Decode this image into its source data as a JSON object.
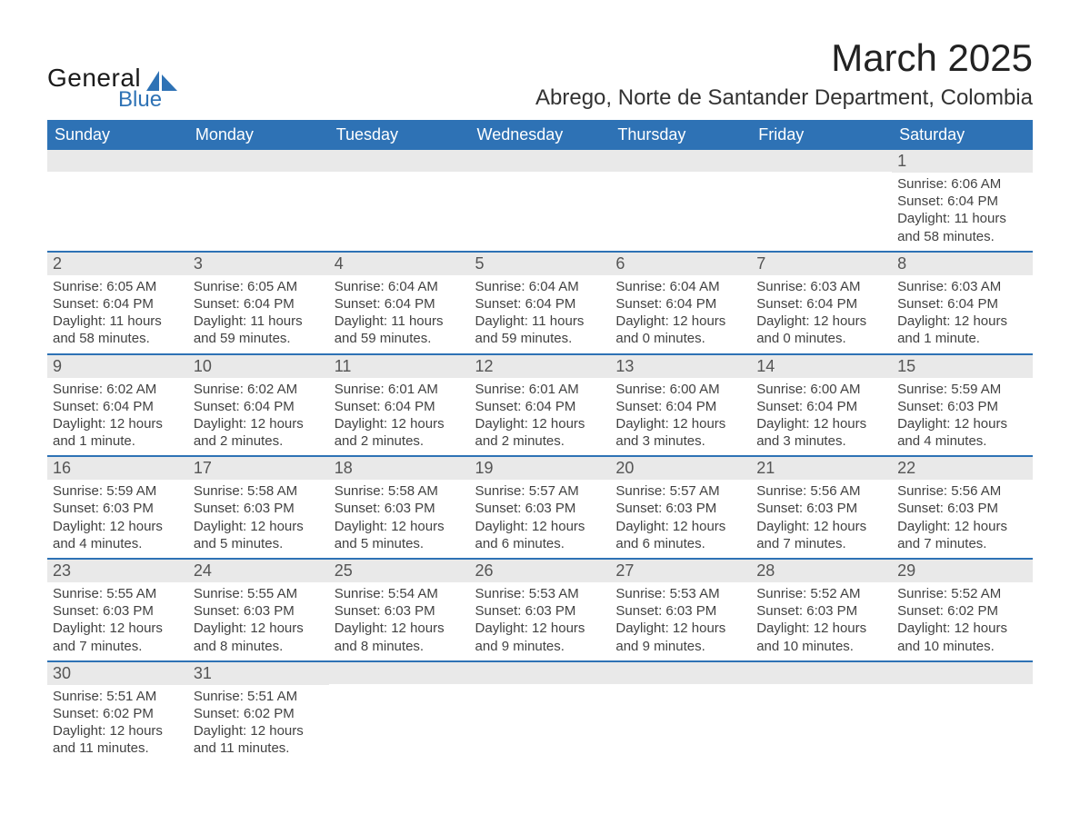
{
  "brand": {
    "name_part1": "General",
    "name_part2": "Blue",
    "shape_color": "#2e72b5",
    "text_general_color": "#1a1a1a",
    "text_blue_color": "#2e72b5"
  },
  "header": {
    "month_title": "March 2025",
    "location": "Abrego, Norte de Santander Department, Colombia"
  },
  "colors": {
    "header_row_bg": "#2e72b5",
    "header_row_text": "#ffffff",
    "daynum_bg": "#e9e9e9",
    "row_border": "#2e72b5",
    "body_text": "#424242",
    "page_bg": "#ffffff"
  },
  "fonts": {
    "month_title_size_pt": 32,
    "location_size_pt": 18,
    "weekday_size_pt": 14,
    "daynum_size_pt": 14,
    "body_size_pt": 11
  },
  "calendar": {
    "type": "table",
    "weekdays": [
      "Sunday",
      "Monday",
      "Tuesday",
      "Wednesday",
      "Thursday",
      "Friday",
      "Saturday"
    ],
    "weeks": [
      [
        {
          "day": "",
          "sunrise": "",
          "sunset": "",
          "daylight": ""
        },
        {
          "day": "",
          "sunrise": "",
          "sunset": "",
          "daylight": ""
        },
        {
          "day": "",
          "sunrise": "",
          "sunset": "",
          "daylight": ""
        },
        {
          "day": "",
          "sunrise": "",
          "sunset": "",
          "daylight": ""
        },
        {
          "day": "",
          "sunrise": "",
          "sunset": "",
          "daylight": ""
        },
        {
          "day": "",
          "sunrise": "",
          "sunset": "",
          "daylight": ""
        },
        {
          "day": "1",
          "sunrise": "Sunrise: 6:06 AM",
          "sunset": "Sunset: 6:04 PM",
          "daylight": "Daylight: 11 hours and 58 minutes."
        }
      ],
      [
        {
          "day": "2",
          "sunrise": "Sunrise: 6:05 AM",
          "sunset": "Sunset: 6:04 PM",
          "daylight": "Daylight: 11 hours and 58 minutes."
        },
        {
          "day": "3",
          "sunrise": "Sunrise: 6:05 AM",
          "sunset": "Sunset: 6:04 PM",
          "daylight": "Daylight: 11 hours and 59 minutes."
        },
        {
          "day": "4",
          "sunrise": "Sunrise: 6:04 AM",
          "sunset": "Sunset: 6:04 PM",
          "daylight": "Daylight: 11 hours and 59 minutes."
        },
        {
          "day": "5",
          "sunrise": "Sunrise: 6:04 AM",
          "sunset": "Sunset: 6:04 PM",
          "daylight": "Daylight: 11 hours and 59 minutes."
        },
        {
          "day": "6",
          "sunrise": "Sunrise: 6:04 AM",
          "sunset": "Sunset: 6:04 PM",
          "daylight": "Daylight: 12 hours and 0 minutes."
        },
        {
          "day": "7",
          "sunrise": "Sunrise: 6:03 AM",
          "sunset": "Sunset: 6:04 PM",
          "daylight": "Daylight: 12 hours and 0 minutes."
        },
        {
          "day": "8",
          "sunrise": "Sunrise: 6:03 AM",
          "sunset": "Sunset: 6:04 PM",
          "daylight": "Daylight: 12 hours and 1 minute."
        }
      ],
      [
        {
          "day": "9",
          "sunrise": "Sunrise: 6:02 AM",
          "sunset": "Sunset: 6:04 PM",
          "daylight": "Daylight: 12 hours and 1 minute."
        },
        {
          "day": "10",
          "sunrise": "Sunrise: 6:02 AM",
          "sunset": "Sunset: 6:04 PM",
          "daylight": "Daylight: 12 hours and 2 minutes."
        },
        {
          "day": "11",
          "sunrise": "Sunrise: 6:01 AM",
          "sunset": "Sunset: 6:04 PM",
          "daylight": "Daylight: 12 hours and 2 minutes."
        },
        {
          "day": "12",
          "sunrise": "Sunrise: 6:01 AM",
          "sunset": "Sunset: 6:04 PM",
          "daylight": "Daylight: 12 hours and 2 minutes."
        },
        {
          "day": "13",
          "sunrise": "Sunrise: 6:00 AM",
          "sunset": "Sunset: 6:04 PM",
          "daylight": "Daylight: 12 hours and 3 minutes."
        },
        {
          "day": "14",
          "sunrise": "Sunrise: 6:00 AM",
          "sunset": "Sunset: 6:04 PM",
          "daylight": "Daylight: 12 hours and 3 minutes."
        },
        {
          "day": "15",
          "sunrise": "Sunrise: 5:59 AM",
          "sunset": "Sunset: 6:03 PM",
          "daylight": "Daylight: 12 hours and 4 minutes."
        }
      ],
      [
        {
          "day": "16",
          "sunrise": "Sunrise: 5:59 AM",
          "sunset": "Sunset: 6:03 PM",
          "daylight": "Daylight: 12 hours and 4 minutes."
        },
        {
          "day": "17",
          "sunrise": "Sunrise: 5:58 AM",
          "sunset": "Sunset: 6:03 PM",
          "daylight": "Daylight: 12 hours and 5 minutes."
        },
        {
          "day": "18",
          "sunrise": "Sunrise: 5:58 AM",
          "sunset": "Sunset: 6:03 PM",
          "daylight": "Daylight: 12 hours and 5 minutes."
        },
        {
          "day": "19",
          "sunrise": "Sunrise: 5:57 AM",
          "sunset": "Sunset: 6:03 PM",
          "daylight": "Daylight: 12 hours and 6 minutes."
        },
        {
          "day": "20",
          "sunrise": "Sunrise: 5:57 AM",
          "sunset": "Sunset: 6:03 PM",
          "daylight": "Daylight: 12 hours and 6 minutes."
        },
        {
          "day": "21",
          "sunrise": "Sunrise: 5:56 AM",
          "sunset": "Sunset: 6:03 PM",
          "daylight": "Daylight: 12 hours and 7 minutes."
        },
        {
          "day": "22",
          "sunrise": "Sunrise: 5:56 AM",
          "sunset": "Sunset: 6:03 PM",
          "daylight": "Daylight: 12 hours and 7 minutes."
        }
      ],
      [
        {
          "day": "23",
          "sunrise": "Sunrise: 5:55 AM",
          "sunset": "Sunset: 6:03 PM",
          "daylight": "Daylight: 12 hours and 7 minutes."
        },
        {
          "day": "24",
          "sunrise": "Sunrise: 5:55 AM",
          "sunset": "Sunset: 6:03 PM",
          "daylight": "Daylight: 12 hours and 8 minutes."
        },
        {
          "day": "25",
          "sunrise": "Sunrise: 5:54 AM",
          "sunset": "Sunset: 6:03 PM",
          "daylight": "Daylight: 12 hours and 8 minutes."
        },
        {
          "day": "26",
          "sunrise": "Sunrise: 5:53 AM",
          "sunset": "Sunset: 6:03 PM",
          "daylight": "Daylight: 12 hours and 9 minutes."
        },
        {
          "day": "27",
          "sunrise": "Sunrise: 5:53 AM",
          "sunset": "Sunset: 6:03 PM",
          "daylight": "Daylight: 12 hours and 9 minutes."
        },
        {
          "day": "28",
          "sunrise": "Sunrise: 5:52 AM",
          "sunset": "Sunset: 6:03 PM",
          "daylight": "Daylight: 12 hours and 10 minutes."
        },
        {
          "day": "29",
          "sunrise": "Sunrise: 5:52 AM",
          "sunset": "Sunset: 6:02 PM",
          "daylight": "Daylight: 12 hours and 10 minutes."
        }
      ],
      [
        {
          "day": "30",
          "sunrise": "Sunrise: 5:51 AM",
          "sunset": "Sunset: 6:02 PM",
          "daylight": "Daylight: 12 hours and 11 minutes."
        },
        {
          "day": "31",
          "sunrise": "Sunrise: 5:51 AM",
          "sunset": "Sunset: 6:02 PM",
          "daylight": "Daylight: 12 hours and 11 minutes."
        },
        {
          "day": "",
          "sunrise": "",
          "sunset": "",
          "daylight": ""
        },
        {
          "day": "",
          "sunrise": "",
          "sunset": "",
          "daylight": ""
        },
        {
          "day": "",
          "sunrise": "",
          "sunset": "",
          "daylight": ""
        },
        {
          "day": "",
          "sunrise": "",
          "sunset": "",
          "daylight": ""
        },
        {
          "day": "",
          "sunrise": "",
          "sunset": "",
          "daylight": ""
        }
      ]
    ]
  }
}
